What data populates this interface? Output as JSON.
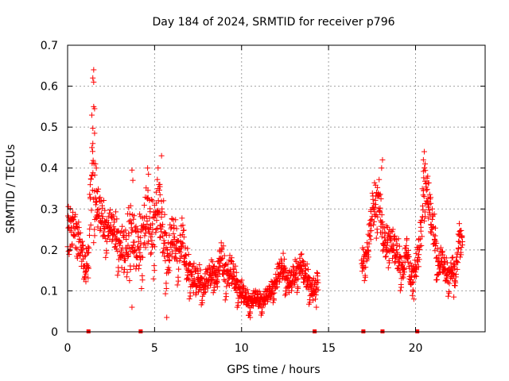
{
  "chart_data": {
    "type": "scatter",
    "title": "Day 184 of 2024, SRMTID for receiver p796",
    "xlabel": "GPS time / hours",
    "ylabel": "SRMTID / TECUs",
    "xlim": [
      0,
      24
    ],
    "ylim": [
      0,
      0.7
    ],
    "xticks": [
      0,
      5,
      10,
      15,
      20
    ],
    "yticks": [
      0,
      0.1,
      0.2,
      0.3,
      0.4,
      0.5,
      0.6,
      0.7
    ],
    "xtick_labels": [
      "0",
      "5",
      "10",
      "15",
      "20"
    ],
    "ytick_labels": [
      "0",
      "0.1",
      "0.2",
      "0.3",
      "0.4",
      "0.5",
      "0.6",
      "0.7"
    ],
    "grid": true,
    "marker": "plus",
    "color": "#ff0000",
    "zero_markers_x": [
      1.2,
      4.2,
      14.2,
      17.0,
      18.1,
      20.1
    ],
    "series": [
      {
        "name": "SRMTID",
        "segments": [
          {
            "x": [
              0.0,
              0.2,
              0.4,
              0.6,
              0.8,
              1.0,
              1.2,
              1.4,
              1.6,
              1.8,
              2.0,
              2.2,
              2.4,
              2.6,
              2.8,
              3.0,
              3.2,
              3.4,
              3.6,
              3.8,
              4.0,
              4.2,
              4.4,
              4.6,
              4.8,
              5.0,
              5.2,
              5.4,
              5.6,
              5.8,
              6.0,
              6.2,
              6.4,
              6.6,
              6.8,
              7.0,
              7.2,
              7.4,
              7.6,
              7.8,
              8.0,
              8.2,
              8.4,
              8.6,
              8.8,
              9.0,
              9.2,
              9.4,
              9.6,
              9.8,
              10.0,
              10.2,
              10.4,
              10.6,
              10.8,
              11.0,
              11.2,
              11.4,
              11.6,
              11.8,
              12.0,
              12.2,
              12.4,
              12.6,
              12.8,
              13.0,
              13.2,
              13.4,
              13.6,
              13.8,
              14.0,
              14.2,
              14.4
            ],
            "y": [
              0.22,
              0.25,
              0.27,
              0.22,
              0.18,
              0.14,
              0.16,
              0.4,
              0.3,
              0.28,
              0.26,
              0.24,
              0.25,
              0.24,
              0.22,
              0.2,
              0.18,
              0.17,
              0.25,
              0.2,
              0.18,
              0.2,
              0.24,
              0.26,
              0.22,
              0.25,
              0.3,
              0.24,
              0.2,
              0.16,
              0.22,
              0.2,
              0.18,
              0.22,
              0.15,
              0.14,
              0.12,
              0.11,
              0.12,
              0.1,
              0.12,
              0.13,
              0.14,
              0.12,
              0.18,
              0.14,
              0.13,
              0.14,
              0.12,
              0.1,
              0.09,
              0.08,
              0.07,
              0.07,
              0.08,
              0.07,
              0.07,
              0.08,
              0.09,
              0.1,
              0.12,
              0.14,
              0.15,
              0.12,
              0.11,
              0.13,
              0.14,
              0.16,
              0.13,
              0.12,
              0.1,
              0.09,
              0.12
            ],
            "spread": [
              0.06,
              0.05,
              0.04,
              0.05,
              0.05,
              0.04,
              0.05,
              0.12,
              0.06,
              0.05,
              0.05,
              0.04,
              0.04,
              0.04,
              0.05,
              0.05,
              0.06,
              0.07,
              0.08,
              0.07,
              0.06,
              0.07,
              0.08,
              0.08,
              0.07,
              0.08,
              0.08,
              0.07,
              0.07,
              0.06,
              0.06,
              0.05,
              0.05,
              0.05,
              0.04,
              0.04,
              0.04,
              0.04,
              0.03,
              0.03,
              0.03,
              0.03,
              0.03,
              0.03,
              0.04,
              0.04,
              0.04,
              0.04,
              0.03,
              0.03,
              0.03,
              0.02,
              0.02,
              0.02,
              0.02,
              0.02,
              0.02,
              0.02,
              0.02,
              0.02,
              0.03,
              0.03,
              0.03,
              0.03,
              0.03,
              0.03,
              0.03,
              0.03,
              0.03,
              0.03,
              0.03,
              0.03,
              0.03
            ]
          },
          {
            "x": [
              16.9,
              17.1,
              17.3,
              17.5,
              17.7,
              17.9,
              18.1,
              18.3,
              18.5,
              18.7,
              18.9,
              19.1,
              19.3,
              19.5,
              19.7,
              19.9,
              20.1,
              20.3,
              20.5,
              20.7,
              20.9,
              21.1,
              21.3,
              21.5,
              21.7,
              21.9,
              22.1,
              22.3,
              22.5,
              22.7
            ],
            "y": [
              0.16,
              0.17,
              0.2,
              0.28,
              0.3,
              0.32,
              0.22,
              0.2,
              0.22,
              0.2,
              0.18,
              0.16,
              0.14,
              0.2,
              0.12,
              0.14,
              0.16,
              0.22,
              0.36,
              0.32,
              0.26,
              0.22,
              0.15,
              0.17,
              0.14,
              0.13,
              0.15,
              0.12,
              0.23,
              0.22
            ],
            "spread": [
              0.03,
              0.03,
              0.04,
              0.05,
              0.05,
              0.06,
              0.04,
              0.04,
              0.04,
              0.04,
              0.04,
              0.04,
              0.03,
              0.03,
              0.03,
              0.03,
              0.04,
              0.05,
              0.06,
              0.05,
              0.05,
              0.04,
              0.04,
              0.03,
              0.03,
              0.03,
              0.03,
              0.03,
              0.03,
              0.03
            ]
          }
        ],
        "peaks": [
          {
            "x": 1.5,
            "y": 0.64
          },
          {
            "x": 1.45,
            "y": 0.62
          },
          {
            "x": 1.5,
            "y": 0.61
          },
          {
            "x": 1.55,
            "y": 0.545
          },
          {
            "x": 1.5,
            "y": 0.55
          },
          {
            "x": 1.55,
            "y": 0.485
          },
          {
            "x": 1.45,
            "y": 0.46
          },
          {
            "x": 1.4,
            "y": 0.45
          },
          {
            "x": 1.6,
            "y": 0.41
          },
          {
            "x": 1.65,
            "y": 0.4
          },
          {
            "x": 3.7,
            "y": 0.395
          },
          {
            "x": 3.75,
            "y": 0.37
          },
          {
            "x": 4.6,
            "y": 0.4
          },
          {
            "x": 4.65,
            "y": 0.385
          },
          {
            "x": 5.4,
            "y": 0.43
          },
          {
            "x": 5.2,
            "y": 0.35
          },
          {
            "x": 5.3,
            "y": 0.36
          },
          {
            "x": 18.1,
            "y": 0.42
          },
          {
            "x": 18.05,
            "y": 0.4
          },
          {
            "x": 20.5,
            "y": 0.44
          },
          {
            "x": 20.45,
            "y": 0.42
          },
          {
            "x": 20.55,
            "y": 0.41
          },
          {
            "x": 20.7,
            "y": 0.38
          },
          {
            "x": 5.7,
            "y": 0.035
          },
          {
            "x": 3.7,
            "y": 0.06
          },
          {
            "x": 10.5,
            "y": 0.035
          },
          {
            "x": 10.4,
            "y": 0.04
          },
          {
            "x": 19.9,
            "y": 0.08
          },
          {
            "x": 22.2,
            "y": 0.085
          },
          {
            "x": 14.3,
            "y": 0.06
          }
        ]
      }
    ]
  }
}
